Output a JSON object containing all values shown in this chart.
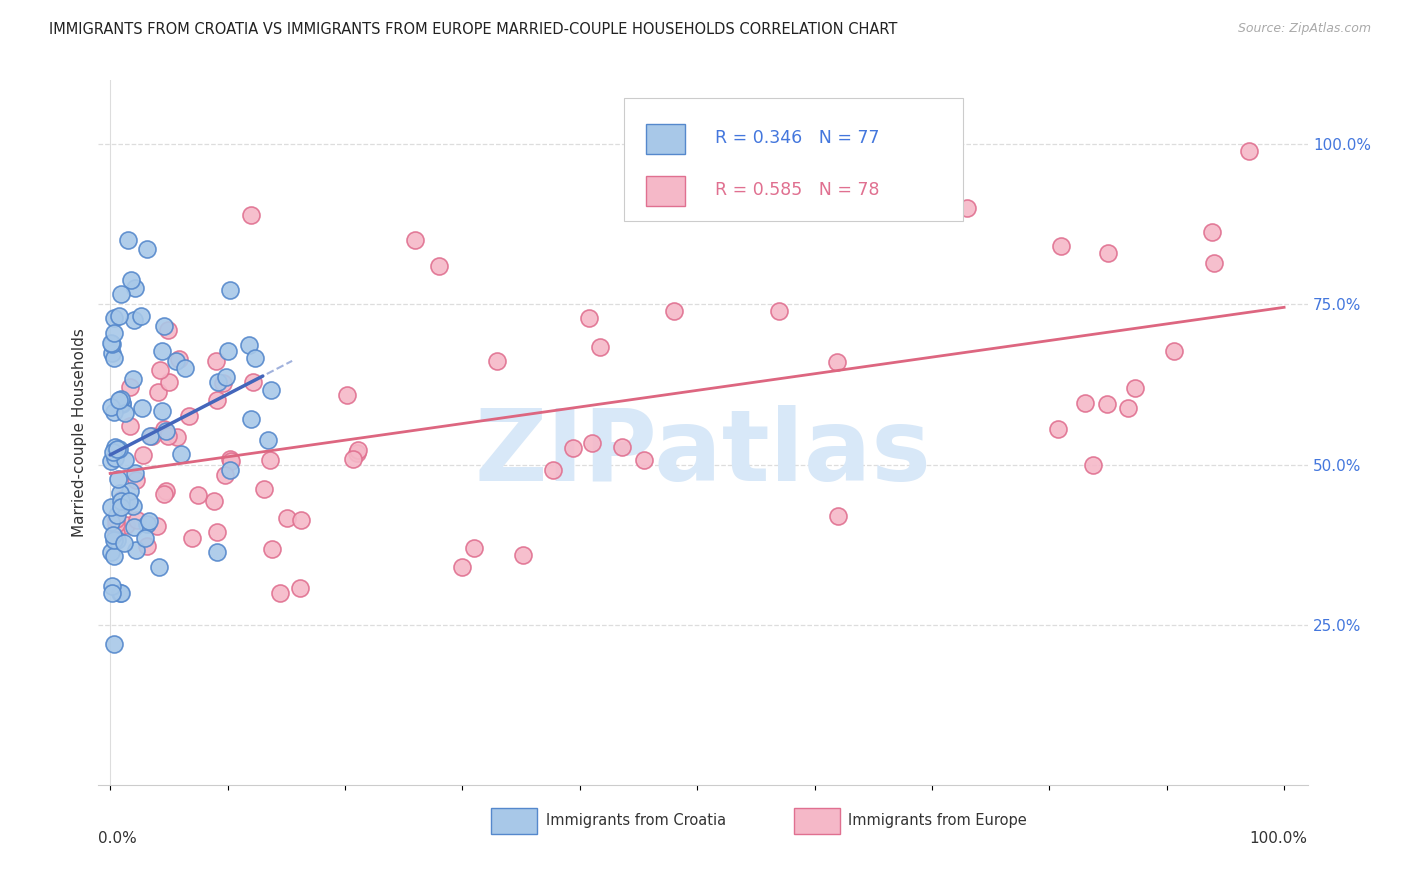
{
  "title": "IMMIGRANTS FROM CROATIA VS IMMIGRANTS FROM EUROPE MARRIED-COUPLE HOUSEHOLDS CORRELATION CHART",
  "source": "Source: ZipAtlas.com",
  "ylabel": "Married-couple Households",
  "ylabel_right_ticks": [
    "100.0%",
    "75.0%",
    "50.0%",
    "25.0%"
  ],
  "ylabel_right_vals": [
    1.0,
    0.75,
    0.5,
    0.25
  ],
  "legend_r_croatia": "R = 0.346",
  "legend_n_croatia": "N = 77",
  "legend_r_europe": "R = 0.585",
  "legend_n_europe": "N = 78",
  "croatia_face": "#a8c8e8",
  "croatia_edge": "#5588cc",
  "europe_face": "#f5b8c8",
  "europe_edge": "#e07090",
  "croatia_line": "#4466bb",
  "europe_line": "#dd6680",
  "text_blue": "#4477dd",
  "text_dark": "#333333",
  "text_gray": "#aaaaaa",
  "watermark_color": "#d8e8f8",
  "grid_color": "#dddddd",
  "xlim": [
    0.0,
    1.0
  ],
  "ylim": [
    0.0,
    1.1
  ],
  "seed": 99
}
